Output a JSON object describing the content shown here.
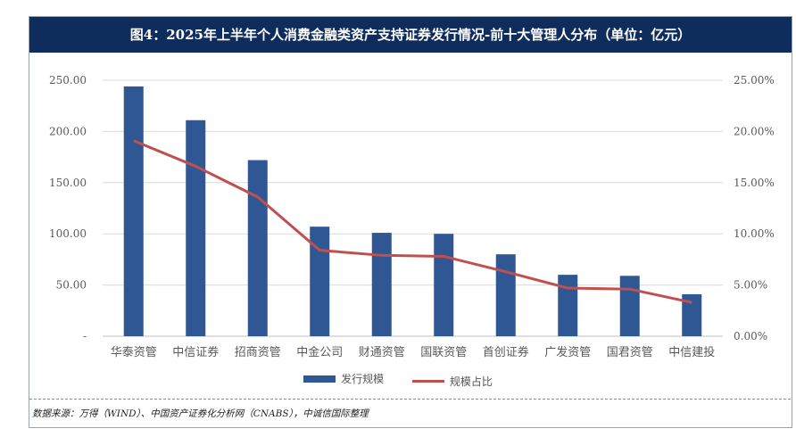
{
  "title": "图4：2025年上半年个人消费金融类资产支持证券发行情况-前十大管理人分布（单位：亿元）",
  "source": "数据来源：万得（WIND）、中国资产证券化分析网（CNABS），中诚信国际整理",
  "colors": {
    "bar": "#2f5794",
    "line": "#c0504d",
    "title_bg": "#0f2d5c"
  },
  "chart_data": {
    "type": "bar",
    "categories": [
      "华泰资管",
      "中信证券",
      "招商资管",
      "中金公司",
      "财通资管",
      "国联资管",
      "首创证券",
      "广发资管",
      "国君资管",
      "中信建投"
    ],
    "series": [
      {
        "name": "发行规模",
        "type": "bar",
        "axis": "left",
        "values": [
          244,
          211,
          172,
          107,
          101,
          100,
          80,
          60,
          59,
          41
        ]
      },
      {
        "name": "规模占比",
        "type": "line",
        "axis": "right",
        "values": [
          19.1,
          16.6,
          13.6,
          8.4,
          7.9,
          7.8,
          6.3,
          4.7,
          4.6,
          3.3
        ]
      }
    ],
    "ylim_left": [
      0,
      250
    ],
    "ylim_right": [
      0,
      25
    ],
    "left_ticks": [
      "-",
      "50.00",
      "100.00",
      "150.00",
      "200.00",
      "250.00"
    ],
    "right_ticks": [
      "0.00%",
      "5.00%",
      "10.00%",
      "15.00%",
      "20.00%",
      "25.00%"
    ],
    "grid": true,
    "legend_position": "bottom"
  }
}
